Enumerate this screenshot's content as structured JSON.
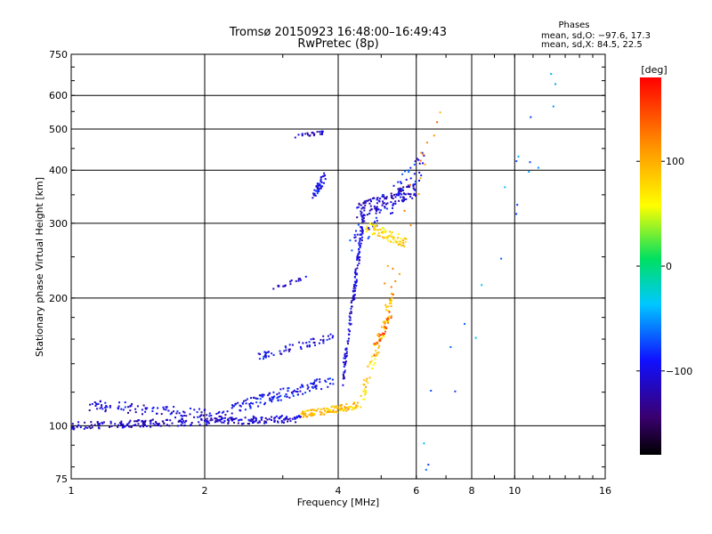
{
  "chart_data": {
    "type": "scatter",
    "title": "Tromsø 20150923 16:48:00–16:49:43",
    "subtitle": "RwPretec (8p)",
    "xlabel": "Frequency [MHz]",
    "ylabel": "Stationary phase Virtual Height [km]",
    "x_scale": "log",
    "y_scale": "log",
    "xlim": [
      1,
      16
    ],
    "ylim": [
      75,
      750
    ],
    "x_ticks": [
      "1",
      "2",
      "4",
      "6",
      "8",
      "10",
      "16"
    ],
    "y_ticks": [
      "75",
      "100",
      "200",
      "300",
      "400",
      "500",
      "600",
      "750"
    ],
    "grid": true,
    "legend": {
      "title": "Phases",
      "line1": "mean, sd,O: −97.6, 17.3",
      "line2": "mean, sd,X:  84.5, 22.5"
    },
    "colorbar": {
      "label": "[deg]",
      "range": [
        -180,
        180
      ],
      "ticks": [
        "100",
        "0",
        "−100"
      ],
      "tick_values": [
        100,
        0,
        -100
      ]
    },
    "point_groups": [
      {
        "name_hidden": "o_low_base",
        "x_range": [
          1.0,
          3.3
        ],
        "y_start": 100,
        "y_end": 104,
        "phase": -110,
        "count": 260,
        "spread": 0.02
      },
      {
        "name_hidden": "o_low_upper",
        "x_range": [
          1.1,
          2.3
        ],
        "y_start": 112,
        "y_end": 105,
        "phase": -105,
        "count": 110,
        "spread": 0.03
      },
      {
        "name_hidden": "o_rise",
        "x_range": [
          2.3,
          3.9
        ],
        "y_start": 110,
        "y_end": 128,
        "phase": -95,
        "count": 130,
        "spread": 0.03
      },
      {
        "name_hidden": "o_mid_band",
        "x_range": [
          2.6,
          3.9
        ],
        "y_start": 145,
        "y_end": 162,
        "phase": -100,
        "count": 60,
        "spread": 0.02
      },
      {
        "name_hidden": "o_cusp",
        "x_range": [
          4.1,
          4.6
        ],
        "y_start": 130,
        "y_end": 330,
        "phase": -105,
        "count": 150,
        "spread": 0.06
      },
      {
        "name_hidden": "o_f2",
        "x_range": [
          4.4,
          6.0
        ],
        "y_start": 320,
        "y_end": 360,
        "phase": -115,
        "count": 120,
        "spread": 0.04
      },
      {
        "name_hidden": "o_high_spread",
        "x_range": [
          4.2,
          6.3
        ],
        "y_start": 260,
        "y_end": 420,
        "phase": -90,
        "count": 70,
        "spread": 0.08
      },
      {
        "name_hidden": "o_upper_trace",
        "x_range": [
          3.2,
          3.7
        ],
        "y_start": 480,
        "y_end": 490,
        "phase": -110,
        "count": 25,
        "spread": 0.01
      },
      {
        "name_hidden": "o_blob_350",
        "x_range": [
          3.5,
          3.75
        ],
        "y_start": 345,
        "y_end": 390,
        "phase": -100,
        "count": 45,
        "spread": 0.03
      },
      {
        "name_hidden": "o_line_215",
        "x_range": [
          2.85,
          3.4
        ],
        "y_start": 210,
        "y_end": 225,
        "phase": -110,
        "count": 20,
        "spread": 0.01
      },
      {
        "name_hidden": "x_low",
        "x_range": [
          3.3,
          4.5
        ],
        "y_start": 106,
        "y_end": 112,
        "phase": 90,
        "count": 110,
        "spread": 0.02
      },
      {
        "name_hidden": "x_rise",
        "x_range": [
          4.5,
          5.3
        ],
        "y_start": 115,
        "y_end": 200,
        "phase": 80,
        "count": 70,
        "spread": 0.06
      },
      {
        "name_hidden": "x_f2",
        "x_range": [
          4.6,
          5.7
        ],
        "y_start": 295,
        "y_end": 270,
        "phase": 75,
        "count": 70,
        "spread": 0.03
      },
      {
        "name_hidden": "x_orange",
        "x_range": [
          4.8,
          5.3
        ],
        "y_start": 150,
        "y_end": 185,
        "phase": 140,
        "count": 30,
        "spread": 0.04
      },
      {
        "name_hidden": "x_scatter",
        "x_range": [
          5.0,
          6.8
        ],
        "y_start": 180,
        "y_end": 620,
        "phase": 120,
        "count": 25,
        "spread": 0.15
      },
      {
        "name_hidden": "far_scatter",
        "x_range": [
          6.2,
          12.5
        ],
        "y_start": 90,
        "y_end": 650,
        "phase": -60,
        "count": 22,
        "spread": 0.2
      }
    ]
  }
}
